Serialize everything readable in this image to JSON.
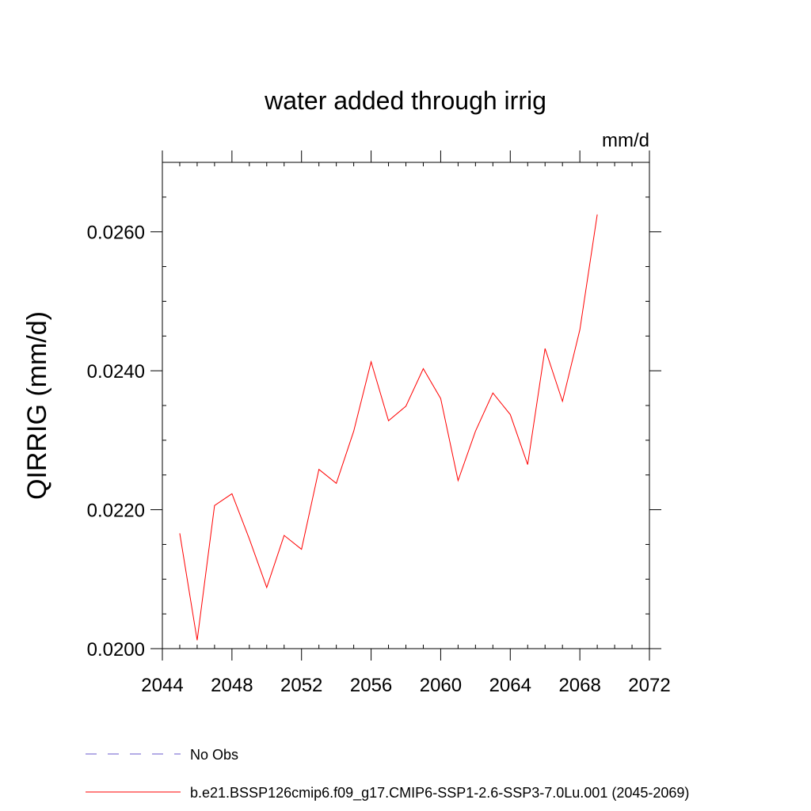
{
  "chart_data": {
    "type": "line",
    "title": "water added through irrig",
    "units": "mm/d",
    "ylabel": "QIRRIG  (mm/d)",
    "xlabel": "",
    "xlim": [
      2044,
      2072
    ],
    "ylim": [
      0.02,
      0.027
    ],
    "xticks": [
      2044,
      2048,
      2052,
      2056,
      2060,
      2064,
      2068,
      2072
    ],
    "xtick_labels": [
      "2044",
      "2048",
      "2052",
      "2056",
      "2060",
      "2064",
      "2068",
      "2072"
    ],
    "yticks": [
      0.02,
      0.022,
      0.024,
      0.026
    ],
    "ytick_labels": [
      "0.0200",
      "0.0220",
      "0.0240",
      "0.0260"
    ],
    "grid": false,
    "legend_position": "bottom",
    "series": [
      {
        "name": "b.e21.BSSP126cmip6.f09_g17.CMIP6-SSP1-2.6-SSP3-7.0Lu.001 (2045-2069)",
        "color": "#ff0000",
        "style": "solid",
        "x": [
          2045,
          2046,
          2047,
          2048,
          2049,
          2050,
          2051,
          2052,
          2053,
          2054,
          2055,
          2056,
          2057,
          2058,
          2059,
          2060,
          2061,
          2062,
          2063,
          2064,
          2065,
          2066,
          2067,
          2068,
          2069
        ],
        "y": [
          0.02166,
          0.02012,
          0.02206,
          0.02223,
          0.02158,
          0.02088,
          0.02163,
          0.02143,
          0.02258,
          0.02238,
          0.02313,
          0.02413,
          0.02328,
          0.02349,
          0.02403,
          0.0236,
          0.02242,
          0.02313,
          0.02368,
          0.02337,
          0.02265,
          0.02432,
          0.02356,
          0.02459,
          0.02625
        ]
      },
      {
        "name": "No Obs",
        "color": "#6a5acd",
        "style": "dashed",
        "x": [],
        "y": []
      }
    ]
  }
}
